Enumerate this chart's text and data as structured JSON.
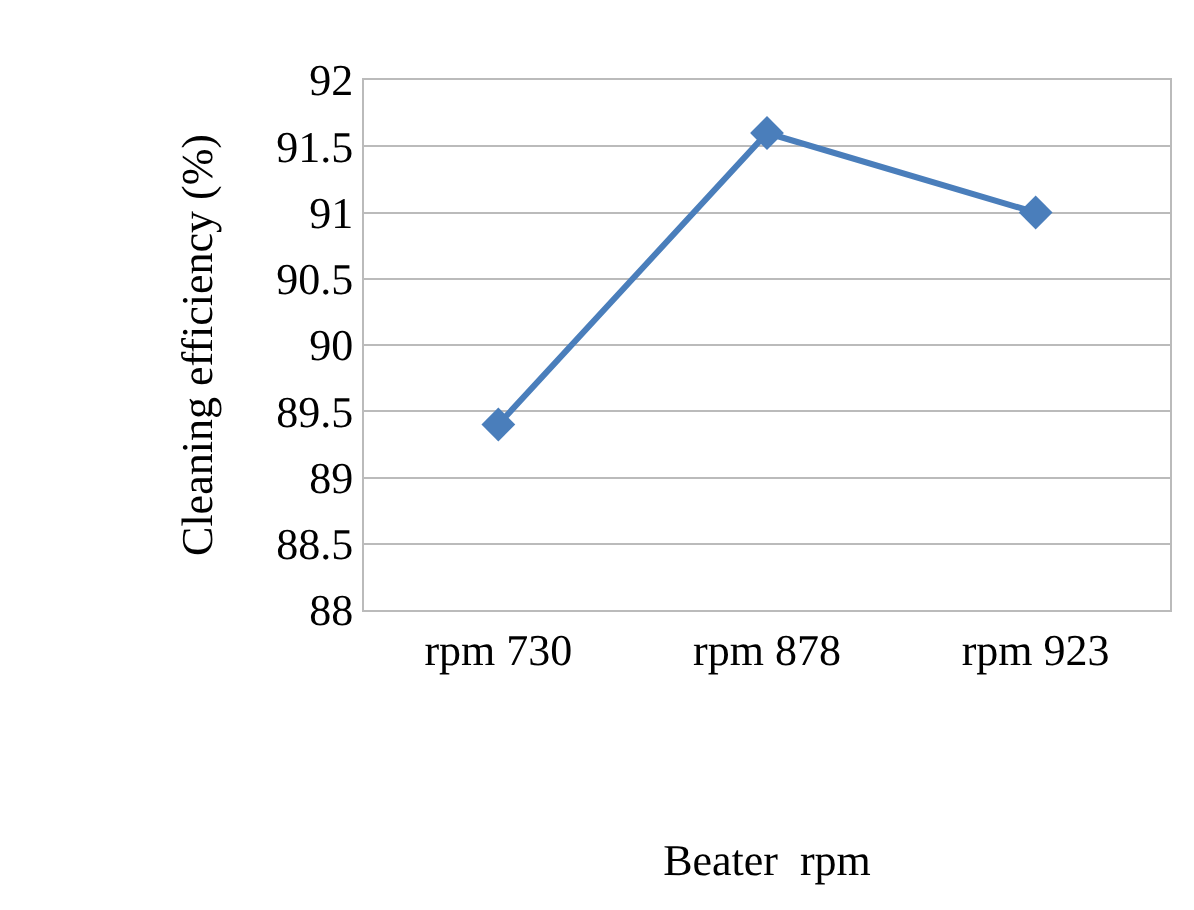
{
  "chart_data": {
    "type": "line",
    "xlabel": "Beater  rpm",
    "ylabel": "Cleaning efficiency (%)",
    "categories": [
      "rpm 730",
      "rpm 878",
      "rpm 923"
    ],
    "series": [
      {
        "color": "#4a7ebb",
        "values": [
          89.4,
          91.6,
          91.0
        ]
      }
    ],
    "ylim": [
      88,
      92
    ],
    "yticks": [
      88,
      88.5,
      89,
      89.5,
      90,
      90.5,
      91,
      91.5,
      92
    ],
    "grid": "y",
    "marker": "diamond",
    "line_style": "solid"
  }
}
